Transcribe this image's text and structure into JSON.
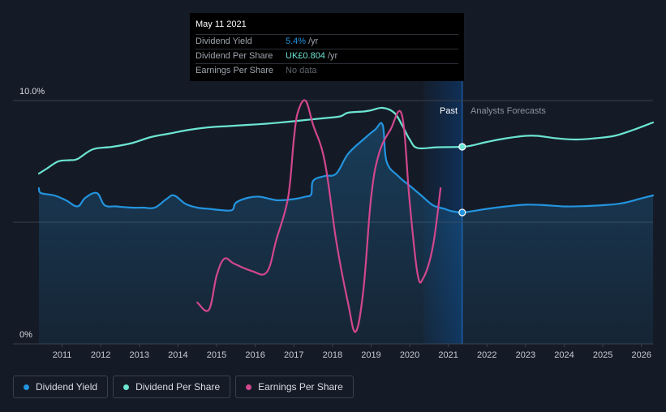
{
  "colors": {
    "yield": "#2394df",
    "dps": "#6ce5d2",
    "eps": "#d1478d",
    "forecast_band": "#0f2f56"
  },
  "tooltip": {
    "date": "May 11 2021",
    "rows": [
      {
        "name": "Dividend Yield",
        "value": "5.4%",
        "unit": "/yr"
      },
      {
        "name": "Dividend Per Share",
        "value": "UK£0.804",
        "unit": "/yr"
      },
      {
        "name": "Earnings Per Share",
        "value": "No data",
        "unit": ""
      }
    ]
  },
  "legend": [
    {
      "label": "Dividend Yield",
      "color": "#2394df"
    },
    {
      "label": "Dividend Per Share",
      "color": "#6ce5d2"
    },
    {
      "label": "Earnings Per Share",
      "color": "#d1478d"
    }
  ],
  "chart_data": {
    "type": "line",
    "y_axis": {
      "top_label": "10.0%",
      "bottom_label": "0%",
      "range": [
        0,
        10
      ]
    },
    "x_range": [
      2010.4,
      2026.3
    ],
    "x_ticks": [
      "2011",
      "2012",
      "2013",
      "2014",
      "2015",
      "2016",
      "2017",
      "2018",
      "2019",
      "2020",
      "2021",
      "2022",
      "2023",
      "2024",
      "2025",
      "2026"
    ],
    "regions": {
      "past_label": "Past",
      "forecast_label": "Analysts Forecasts",
      "divider_x": 2021.36,
      "band_start_x": 2020.35
    },
    "series": [
      {
        "name": "Dividend Yield",
        "key": "yield",
        "area": true,
        "x": [
          2010.4,
          2010.45,
          2010.8,
          2011.1,
          2011.4,
          2011.6,
          2011.9,
          2012.1,
          2012.4,
          2012.8,
          2013.1,
          2013.4,
          2013.7,
          2013.9,
          2014.2,
          2014.5,
          2014.8,
          2015.1,
          2015.4,
          2015.5,
          2015.8,
          2016.1,
          2016.4,
          2016.6,
          2017.0,
          2017.3,
          2017.45,
          2017.5,
          2017.8,
          2018.1,
          2018.4,
          2018.8,
          2019.1,
          2019.3,
          2019.4,
          2019.7,
          2020.0,
          2020.3,
          2020.6,
          2020.9,
          2021.1,
          2021.36,
          2021.6,
          2022.0,
          2022.5,
          2023.0,
          2023.5,
          2024.0,
          2024.5,
          2025.0,
          2025.5,
          2026.0,
          2026.3
        ],
        "values": [
          6.4,
          6.2,
          6.1,
          5.9,
          5.65,
          6.0,
          6.2,
          5.7,
          5.65,
          5.6,
          5.6,
          5.6,
          5.95,
          6.1,
          5.75,
          5.6,
          5.55,
          5.5,
          5.5,
          5.8,
          6.0,
          6.05,
          5.95,
          5.9,
          5.95,
          6.05,
          6.15,
          6.7,
          6.9,
          7.0,
          7.8,
          8.4,
          8.8,
          9.0,
          7.5,
          6.9,
          6.5,
          6.1,
          5.7,
          5.55,
          5.45,
          5.4,
          5.45,
          5.55,
          5.65,
          5.72,
          5.7,
          5.65,
          5.66,
          5.7,
          5.78,
          5.98,
          6.1
        ]
      },
      {
        "name": "Dividend Per Share",
        "key": "dps",
        "area": false,
        "x": [
          2010.4,
          2010.6,
          2010.9,
          2011.2,
          2011.4,
          2011.8,
          2012.3,
          2012.8,
          2013.3,
          2013.8,
          2014.3,
          2014.8,
          2015.3,
          2015.8,
          2016.3,
          2016.8,
          2017.3,
          2017.8,
          2018.2,
          2018.4,
          2018.8,
          2019.0,
          2019.3,
          2019.6,
          2019.8,
          2020.0,
          2020.2,
          2020.7,
          2021.36,
          2021.6,
          2022.0,
          2022.5,
          2023.0,
          2023.3,
          2023.8,
          2024.3,
          2024.8,
          2025.3,
          2025.8,
          2026.3
        ],
        "values": [
          7.0,
          7.2,
          7.5,
          7.55,
          7.6,
          8.0,
          8.1,
          8.25,
          8.5,
          8.65,
          8.8,
          8.9,
          8.95,
          9.0,
          9.05,
          9.12,
          9.2,
          9.28,
          9.35,
          9.5,
          9.55,
          9.6,
          9.7,
          9.5,
          9.0,
          8.4,
          8.05,
          8.08,
          8.1,
          8.15,
          8.3,
          8.45,
          8.55,
          8.55,
          8.45,
          8.4,
          8.45,
          8.55,
          8.8,
          9.1
        ]
      },
      {
        "name": "Earnings Per Share",
        "key": "eps",
        "area": false,
        "x": [
          2014.5,
          2014.8,
          2015.0,
          2015.2,
          2015.45,
          2015.9,
          2016.3,
          2016.55,
          2016.85,
          2017.0,
          2017.1,
          2017.3,
          2017.5,
          2017.8,
          2018.1,
          2018.4,
          2018.6,
          2018.8,
          2019.0,
          2019.2,
          2019.5,
          2019.8,
          2020.0,
          2020.2,
          2020.35,
          2020.6,
          2020.8
        ],
        "values": [
          1.7,
          1.4,
          2.8,
          3.5,
          3.3,
          3.0,
          2.95,
          4.3,
          6.0,
          8.4,
          9.5,
          10.0,
          9.0,
          7.5,
          4.2,
          1.7,
          0.5,
          2.2,
          6.0,
          7.8,
          8.8,
          9.4,
          5.8,
          2.9,
          2.7,
          4.0,
          6.4
        ]
      }
    ],
    "markers": [
      {
        "series": "yield",
        "x": 2021.36,
        "y": 5.4
      },
      {
        "series": "dps",
        "x": 2021.36,
        "y": 8.1
      }
    ]
  }
}
